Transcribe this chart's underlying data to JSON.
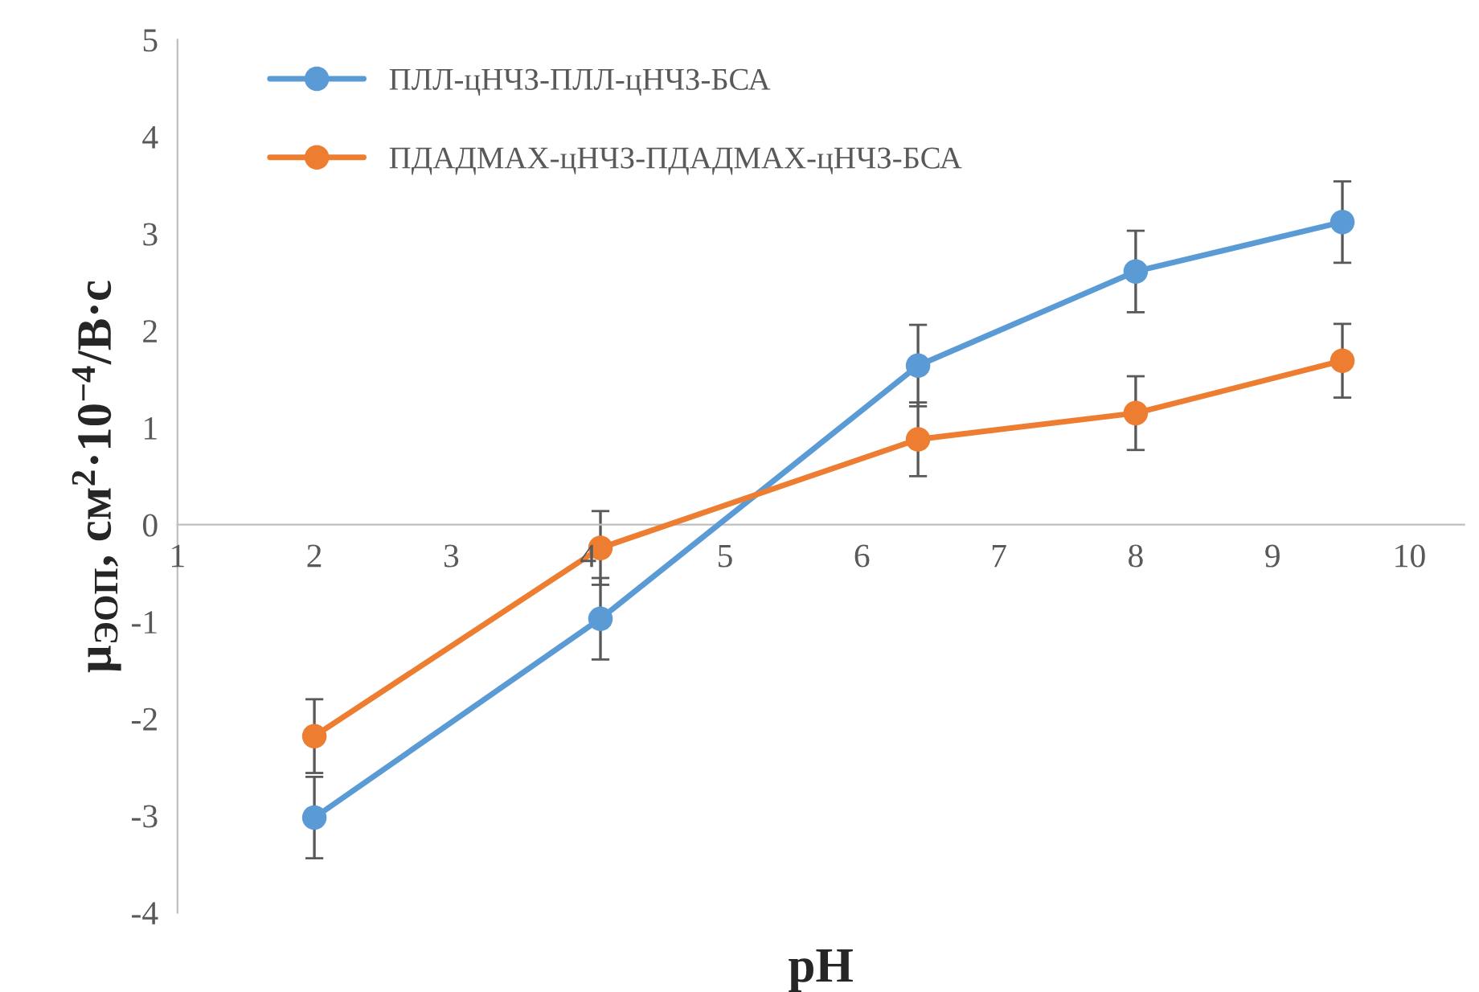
{
  "chart_data": {
    "type": "line",
    "xlabel": "pH",
    "ylabel": "μ$_{ЭОП}$, см$^{2}$·10$^{−4}$/В·с",
    "xlim": [
      1,
      10.4
    ],
    "xticks": [
      1,
      2,
      3,
      4,
      5,
      6,
      7,
      8,
      9,
      10
    ],
    "ylim": [
      -4,
      5
    ],
    "yticks": [
      -4,
      -3,
      -2,
      -1,
      0,
      1,
      2,
      3,
      4,
      5
    ],
    "grid": false,
    "legend": "top left",
    "marker": "circle",
    "line_style": "solid",
    "series": [
      {
        "name": "ПЛЛ-цНЧЗ-ПЛЛ-цНЧЗ-БСА",
        "color": "#5b9bd5",
        "x": [
          2,
          4.09,
          6.41,
          8.0,
          9.51
        ],
        "values": [
          -3.02,
          -0.97,
          1.64,
          2.61,
          3.12
        ],
        "errors": [
          0.42,
          0.42,
          0.42,
          0.42,
          0.42
        ]
      },
      {
        "name": "ПДАДМАХ-цНЧЗ-ПДАДМАХ-цНЧЗ-БСА",
        "color": "#ed7d31",
        "x": [
          2,
          4.09,
          6.41,
          8.0,
          9.51
        ],
        "values": [
          -2.18,
          -0.24,
          0.88,
          1.15,
          1.69
        ],
        "errors": [
          0.38,
          0.38,
          0.38,
          0.38,
          0.38
        ]
      }
    ]
  }
}
